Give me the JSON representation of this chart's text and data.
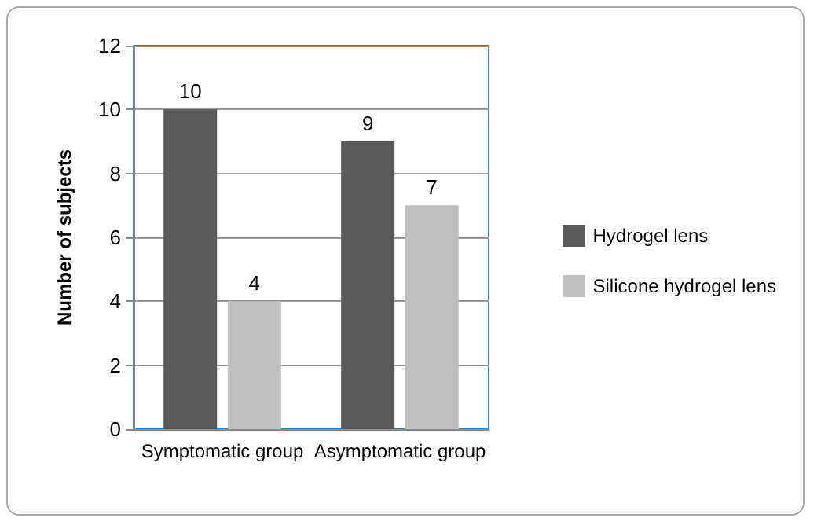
{
  "chart_data": {
    "type": "bar",
    "ylabel": "Number of subjects",
    "categories": [
      "Symptomatic group",
      "Asymptomatic group"
    ],
    "series": [
      {
        "name": "Hydrogel lens",
        "color": "#595959",
        "values": [
          10,
          9
        ]
      },
      {
        "name": "Silicone hydrogel lens",
        "color": "#bfbfbf",
        "values": [
          4,
          7
        ]
      }
    ],
    "ylim": [
      0,
      12
    ],
    "yticks": [
      0,
      2,
      4,
      6,
      8,
      10,
      12
    ],
    "grid": "y",
    "legend": "right",
    "data_labels": true
  }
}
